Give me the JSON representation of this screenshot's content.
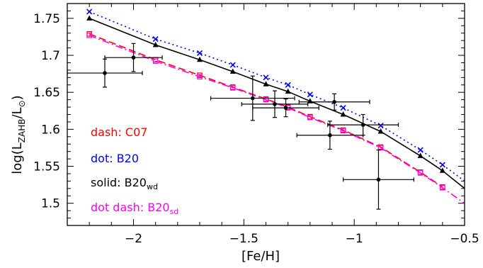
{
  "chart_data": {
    "type": "line",
    "xlabel": "[Fe/H]",
    "ylabel": "log(L",
    "ylabel_sub": "ZAHB",
    "ylabel_mid": "/L",
    "ylabel_sun": "⊙",
    "ylabel_end": ")",
    "xlim": [
      -2.3,
      -0.5
    ],
    "ylim": [
      1.47,
      1.77
    ],
    "x_ticks": [
      -2,
      -1.5,
      -1,
      -0.5
    ],
    "x_tick_labels": [
      "−2",
      "−1.5",
      "−1",
      "−0.5"
    ],
    "y_ticks": [
      1.5,
      1.55,
      1.6,
      1.65,
      1.7,
      1.75
    ],
    "y_tick_labels": [
      "1.5",
      "1.55",
      "1.6",
      "1.65",
      "1.7",
      "1.75"
    ],
    "series": [
      {
        "key": "c07",
        "color": "#ff0000",
        "linestyle": "dash",
        "marker": "open-square",
        "x": [
          -2.2,
          -1.9,
          -1.7,
          -1.55,
          -1.4,
          -1.3,
          -1.2,
          -1.05,
          -0.88,
          -0.7,
          -0.6
        ],
        "y": [
          1.729,
          1.694,
          1.673,
          1.657,
          1.641,
          1.63,
          1.617,
          1.599,
          1.576,
          1.542,
          1.522
        ]
      },
      {
        "key": "b20",
        "color": "#0000ff",
        "linestyle": "dot",
        "marker": "cross",
        "x": [
          -2.2,
          -1.9,
          -1.7,
          -1.55,
          -1.4,
          -1.3,
          -1.2,
          -1.05,
          -0.88,
          -0.7,
          -0.6
        ],
        "y": [
          1.759,
          1.722,
          1.703,
          1.687,
          1.67,
          1.66,
          1.647,
          1.629,
          1.605,
          1.572,
          1.552
        ],
        "line_end": [
          -0.5,
          1.53
        ]
      },
      {
        "key": "b20wd",
        "color": "#000000",
        "linestyle": "solid",
        "marker": "filled-triangle",
        "x": [
          -2.2,
          -1.9,
          -1.7,
          -1.55,
          -1.4,
          -1.3,
          -1.2,
          -1.05,
          -0.88,
          -0.7,
          -0.6
        ],
        "y": [
          1.75,
          1.714,
          1.694,
          1.678,
          1.661,
          1.651,
          1.638,
          1.62,
          1.597,
          1.564,
          1.544
        ],
        "line_end": [
          -0.5,
          1.52
        ]
      },
      {
        "key": "b20sd",
        "color": "#ff00ff",
        "linestyle": "dot-dash",
        "marker": "open-square",
        "x": [
          -2.2,
          -1.9,
          -1.7,
          -1.55,
          -1.4,
          -1.3,
          -1.2,
          -1.05,
          -0.88,
          -0.7,
          -0.6
        ],
        "y": [
          1.727,
          1.692,
          1.671,
          1.656,
          1.64,
          1.629,
          1.616,
          1.598,
          1.575,
          1.541,
          1.521
        ],
        "line_end": [
          -0.5,
          1.5
        ]
      }
    ],
    "observations": {
      "color": "#000000",
      "marker": "filled-circle",
      "points": [
        {
          "x": -2.13,
          "y": 1.676,
          "xerr": 0.17,
          "yerr": 0.019
        },
        {
          "x": -2.0,
          "y": 1.697,
          "xerr": 0.13,
          "yerr": 0.019
        },
        {
          "x": -1.46,
          "y": 1.642,
          "xerr": 0.19,
          "yerr": 0.03
        },
        {
          "x": -1.36,
          "y": 1.634,
          "xerr": 0.15,
          "yerr": 0.018
        },
        {
          "x": -1.31,
          "y": 1.629,
          "xerr": 0.15,
          "yerr": 0.012
        },
        {
          "x": -1.09,
          "y": 1.637,
          "xerr": 0.16,
          "yerr": 0.011
        },
        {
          "x": -1.11,
          "y": 1.592,
          "xerr": 0.15,
          "yerr": 0.019
        },
        {
          "x": -0.96,
          "y": 1.606,
          "xerr": 0.16,
          "yerr": 0.014
        },
        {
          "x": -0.89,
          "y": 1.532,
          "xerr": 0.16,
          "yerr": 0.04
        }
      ]
    },
    "legend": {
      "placement": "left",
      "entries": [
        {
          "color": "#ff0000",
          "label": "dash: C07",
          "sub": ""
        },
        {
          "color": "#0000ff",
          "label": "dot: B20",
          "sub": ""
        },
        {
          "color": "#000000",
          "label": "solid: B20",
          "sub": "wd"
        },
        {
          "color": "#ff00ff",
          "label": "dot dash: B20",
          "sub": "sd"
        }
      ]
    }
  }
}
